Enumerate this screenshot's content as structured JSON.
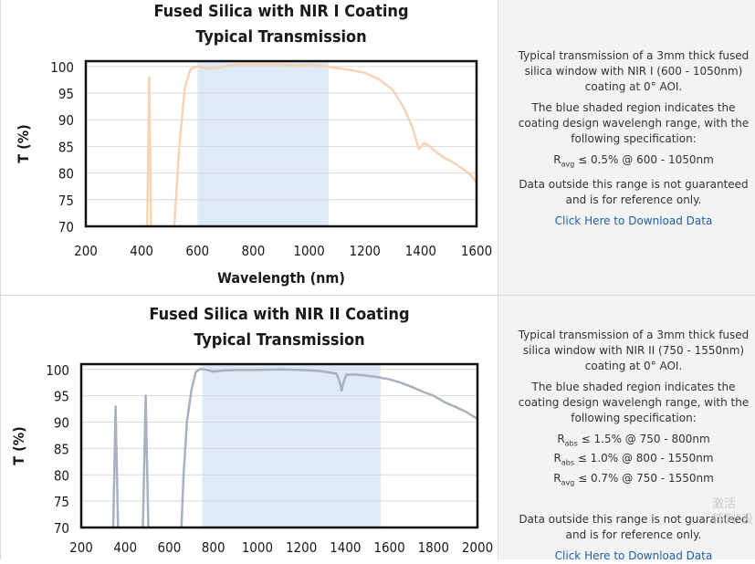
{
  "chart_data": [
    {
      "type": "line",
      "title": "Fused Silica with NIR I Coating",
      "subtitle": "Typical Transmission",
      "xlabel": "Wavelength (nm)",
      "ylabel": "T (%)",
      "xlim": [
        200,
        1600
      ],
      "ylim": [
        70,
        101
      ],
      "xticks": [
        200,
        400,
        600,
        800,
        1000,
        1200,
        1400,
        1600
      ],
      "yticks": [
        70,
        75,
        80,
        85,
        90,
        95,
        100
      ],
      "grid": "horizontal",
      "shaded_range": [
        600,
        1070
      ],
      "series": [
        {
          "color": "#f8d3b3",
          "segments": [
            [
              [
                420,
                70
              ],
              [
                427,
                98
              ],
              [
                434,
                70
              ]
            ],
            [
              [
                517,
                70
              ],
              [
                535,
                85
              ],
              [
                555,
                96
              ],
              [
                575,
                99.5
              ],
              [
                600,
                100
              ],
              [
                640,
                99.6
              ],
              [
                680,
                99.8
              ],
              [
                720,
                100.3
              ],
              [
                760,
                100.4
              ],
              [
                800,
                100.4
              ],
              [
                850,
                100.4
              ],
              [
                900,
                100.4
              ],
              [
                950,
                100.2
              ],
              [
                1000,
                100.4
              ],
              [
                1050,
                100.1
              ],
              [
                1100,
                99.7
              ],
              [
                1150,
                99.3
              ],
              [
                1200,
                98.8
              ],
              [
                1250,
                97.6
              ],
              [
                1300,
                95.6
              ],
              [
                1340,
                92.2
              ],
              [
                1370,
                88.6
              ],
              [
                1385,
                86.0
              ],
              [
                1393,
                84.5
              ],
              [
                1402,
                85.0
              ],
              [
                1412,
                85.6
              ],
              [
                1425,
                85.3
              ],
              [
                1450,
                84.2
              ],
              [
                1480,
                83.0
              ],
              [
                1510,
                82.2
              ],
              [
                1550,
                80.8
              ],
              [
                1580,
                79.6
              ],
              [
                1600,
                78.2
              ]
            ]
          ]
        }
      ]
    },
    {
      "type": "line",
      "title": "Fused Silica with NIR II Coating",
      "subtitle": "Typical Transmission",
      "xlabel": "",
      "ylabel": "T (%)",
      "xlim": [
        200,
        2000
      ],
      "ylim": [
        70,
        101
      ],
      "xticks": [
        200,
        400,
        600,
        800,
        1000,
        1200,
        1400,
        1600,
        1800,
        2000
      ],
      "yticks": [
        70,
        75,
        80,
        85,
        90,
        95,
        100
      ],
      "grid": "horizontal",
      "shaded_range": [
        750,
        1560
      ],
      "series": [
        {
          "color": "#a9b0bf",
          "segments": [
            [
              [
                345,
                70
              ],
              [
                356,
                93
              ],
              [
                367,
                70
              ]
            ],
            [
              [
                480,
                70
              ],
              [
                493,
                95
              ],
              [
                505,
                70
              ]
            ],
            [
              [
                655,
                70
              ],
              [
                665,
                80
              ],
              [
                680,
                90
              ],
              [
                700,
                96
              ],
              [
                720,
                99.5
              ],
              [
                740,
                100.1
              ],
              [
                760,
                100.0
              ],
              [
                800,
                99.6
              ],
              [
                850,
                99.8
              ],
              [
                900,
                99.9
              ],
              [
                1000,
                99.9
              ],
              [
                1100,
                100.0
              ],
              [
                1200,
                99.9
              ],
              [
                1280,
                99.7
              ],
              [
                1330,
                99.4
              ],
              [
                1360,
                99.2
              ],
              [
                1375,
                97.5
              ],
              [
                1383,
                96.0
              ],
              [
                1392,
                97.6
              ],
              [
                1405,
                99.0
              ],
              [
                1450,
                99.0
              ],
              [
                1500,
                98.8
              ],
              [
                1550,
                98.5
              ],
              [
                1600,
                98.1
              ],
              [
                1650,
                97.5
              ],
              [
                1700,
                96.7
              ],
              [
                1750,
                95.8
              ],
              [
                1800,
                95.0
              ],
              [
                1850,
                93.8
              ],
              [
                1900,
                92.9
              ],
              [
                1950,
                91.9
              ],
              [
                2000,
                90.6
              ]
            ]
          ]
        }
      ]
    }
  ],
  "panels": [
    {
      "desc_1": "Typical transmission of a 3mm thick fused silica window with NIR I (600 - 1050nm) coating at 0° AOI.",
      "desc_2": "The blue shaded region indicates the coating design wavelengh range, with the following specification:",
      "specs": [
        {
          "symbol": "R",
          "sub": "avg",
          "text": " ≤ 0.5% @ 600 - 1050nm"
        }
      ],
      "desc_3": "Data outside this range is not guaranteed and is for reference only.",
      "download_label": "Click Here to Download Data"
    },
    {
      "desc_1": "Typical transmission of a 3mm thick fused silica window with NIR II (750 - 1550nm) coating at 0° AOI.",
      "desc_2": "The blue shaded region indicates the coating design wavelengh range, with the following specification:",
      "specs": [
        {
          "symbol": "R",
          "sub": "abs",
          "text": " ≤ 1.5% @ 750 - 800nm"
        },
        {
          "symbol": "R",
          "sub": "abs",
          "text": " ≤ 1.0% @ 800 - 1550nm"
        },
        {
          "symbol": "R",
          "sub": "avg",
          "text": " ≤ 0.7% @ 750 - 1550nm"
        }
      ],
      "desc_3": "Data outside this range is not guaranteed and is for reference only.",
      "download_label": "Click Here to Download Data"
    }
  ],
  "watermark": [
    "激活",
    "转到\"设"
  ],
  "colors": {
    "shade": "#deebf6",
    "frame": "#111111",
    "grid": "#d9d9d9",
    "link": "#1f5fa8"
  }
}
